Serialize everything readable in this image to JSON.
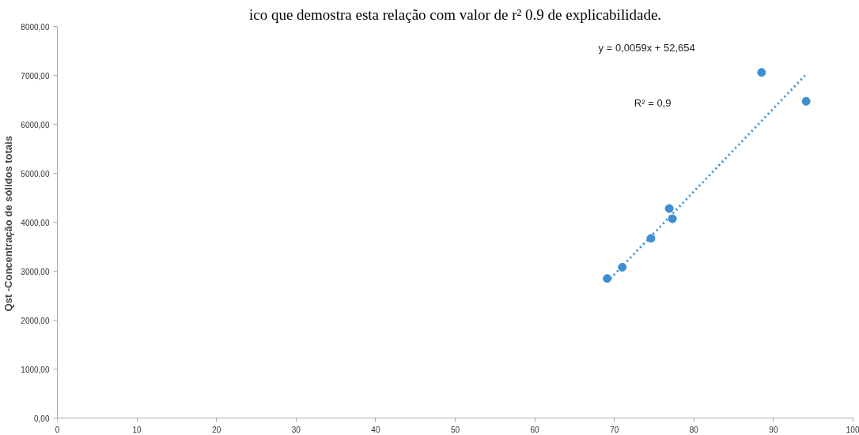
{
  "chart_data": {
    "type": "scatter",
    "title": "ico que demostra esta relação com valor de r² 0.9 de explicabilidade.",
    "ylabel": "Qst -Concentração  de sólidos totais",
    "annotations": [
      "y = 0,0059x + 52,654",
      "R² = 0,9"
    ],
    "series": [
      {
        "color": "#3d8fd1",
        "x": [
          69.1,
          71.0,
          74.6,
          76.9,
          77.3,
          88.5,
          94.1
        ],
        "values": [
          2850,
          3080,
          3670,
          4280,
          4070,
          7060,
          6470
        ],
        "marker": "circle"
      },
      {
        "type": "line",
        "color": "#3d8fd1",
        "x": [
          69.1,
          94.1
        ],
        "values": [
          2780,
          7020
        ],
        "line_style": "dotted"
      }
    ],
    "xlim": [
      0,
      100
    ],
    "xticks": [
      0,
      10,
      20,
      30,
      40,
      50,
      60,
      70,
      80,
      90,
      100
    ],
    "ylim": [
      0,
      8000
    ],
    "yticks": [
      {
        "value": 0,
        "label": "0,00"
      },
      {
        "value": 1000,
        "label": "1000,00"
      },
      {
        "value": 2000,
        "label": "2000,00"
      },
      {
        "value": 3000,
        "label": "3000,00"
      },
      {
        "value": 4000,
        "label": "4000,00"
      },
      {
        "value": 5000,
        "label": "5000,00"
      },
      {
        "value": 6000,
        "label": "6000,00"
      },
      {
        "value": 7000,
        "label": "7000,00"
      },
      {
        "value": 8000,
        "label": "8000,00"
      }
    ],
    "grid": false
  }
}
